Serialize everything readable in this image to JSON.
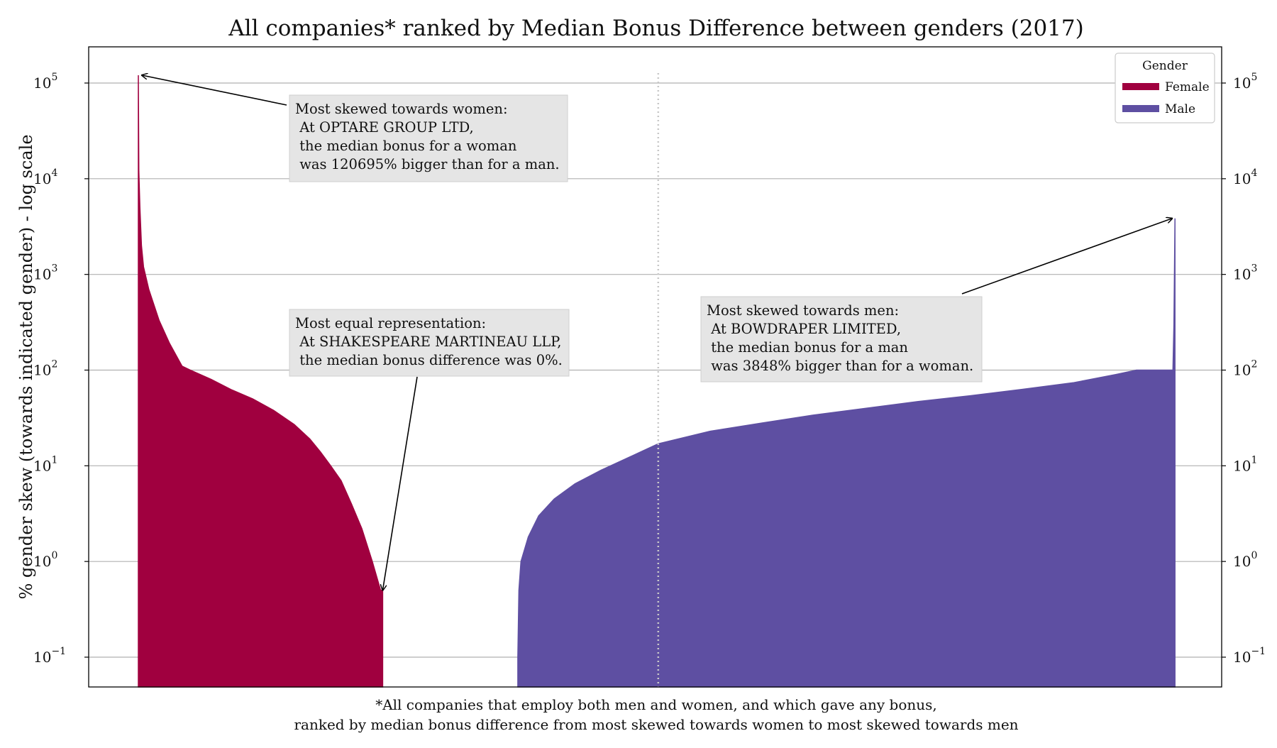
{
  "chart_data": {
    "type": "area",
    "title": "All companies* ranked by Median Bonus Difference between genders (2017)",
    "ylabel": "% gender skew (towards indicated gender) - log scale",
    "caption": [
      "*All companies that employ both men and women, and which gave any bonus,",
      "ranked by median bonus difference from most skewed towards women to most skewed towards men"
    ],
    "yscale": "log",
    "ylim": [
      0.05,
      250000
    ],
    "xlim": [
      0,
      1000
    ],
    "grid": "y",
    "y_ticks": [
      {
        "value": 0.1,
        "base": "10",
        "exp": "−1"
      },
      {
        "value": 1,
        "base": "10",
        "exp": "0"
      },
      {
        "value": 10,
        "base": "10",
        "exp": "1"
      },
      {
        "value": 100,
        "base": "10",
        "exp": "2"
      },
      {
        "value": 1000,
        "base": "10",
        "exp": "3"
      },
      {
        "value": 10000,
        "base": "10",
        "exp": "4"
      },
      {
        "value": 100000,
        "base": "10",
        "exp": "5"
      }
    ],
    "median_line_x": 500,
    "legend": {
      "title": "Gender",
      "placement": "top-right",
      "entries": [
        {
          "name": "Female",
          "color": "#a0003f"
        },
        {
          "name": "Male",
          "color": "#5e4fa2"
        }
      ]
    },
    "series": [
      {
        "name": "Female",
        "color": "#a0003f",
        "points": [
          [
            0,
            120695
          ],
          [
            0.5,
            12000
          ],
          [
            1.5,
            5000
          ],
          [
            3,
            2000
          ],
          [
            5,
            1200
          ],
          [
            10,
            700
          ],
          [
            20,
            330
          ],
          [
            30,
            190
          ],
          [
            42,
            110
          ],
          [
            50,
            100
          ],
          [
            70,
            80
          ],
          [
            90,
            62
          ],
          [
            110,
            50
          ],
          [
            130,
            38
          ],
          [
            150,
            27
          ],
          [
            165,
            19
          ],
          [
            175,
            14
          ],
          [
            185,
            10
          ],
          [
            195,
            7
          ],
          [
            205,
            4
          ],
          [
            215,
            2.2
          ],
          [
            225,
            1
          ],
          [
            233,
            0.5
          ],
          [
            235,
            0.5
          ]
        ]
      },
      {
        "name": "Male",
        "color": "#5e4fa2",
        "points": [
          [
            365,
            0.1
          ],
          [
            366,
            0.5
          ],
          [
            368,
            1
          ],
          [
            375,
            1.8
          ],
          [
            385,
            3
          ],
          [
            400,
            4.5
          ],
          [
            420,
            6.5
          ],
          [
            445,
            9
          ],
          [
            470,
            12
          ],
          [
            500,
            17
          ],
          [
            550,
            23
          ],
          [
            600,
            28
          ],
          [
            650,
            34
          ],
          [
            700,
            40
          ],
          [
            750,
            47
          ],
          [
            800,
            54
          ],
          [
            850,
            63
          ],
          [
            900,
            74
          ],
          [
            940,
            90
          ],
          [
            960,
            100
          ],
          [
            995,
            100
          ],
          [
            996,
            300
          ],
          [
            997,
            3848
          ]
        ]
      }
    ],
    "annotations": [
      {
        "lines": [
          "Most skewed towards women:",
          " At OPTARE GROUP LTD,",
          " the median bonus for a woman",
          " was 120695% bigger than for a man."
        ],
        "target": [
          0,
          120695
        ]
      },
      {
        "lines": [
          "Most equal representation:",
          " At SHAKESPEARE MARTINEAU LLP,",
          " the median bonus difference was 0%."
        ],
        "target": [
          235,
          0.5
        ]
      },
      {
        "lines": [
          "Most skewed towards men:",
          " At BOWDRAPER LIMITED,",
          " the median bonus for a man",
          " was 3848% bigger than for a woman."
        ],
        "target": [
          997,
          3848
        ]
      }
    ]
  }
}
